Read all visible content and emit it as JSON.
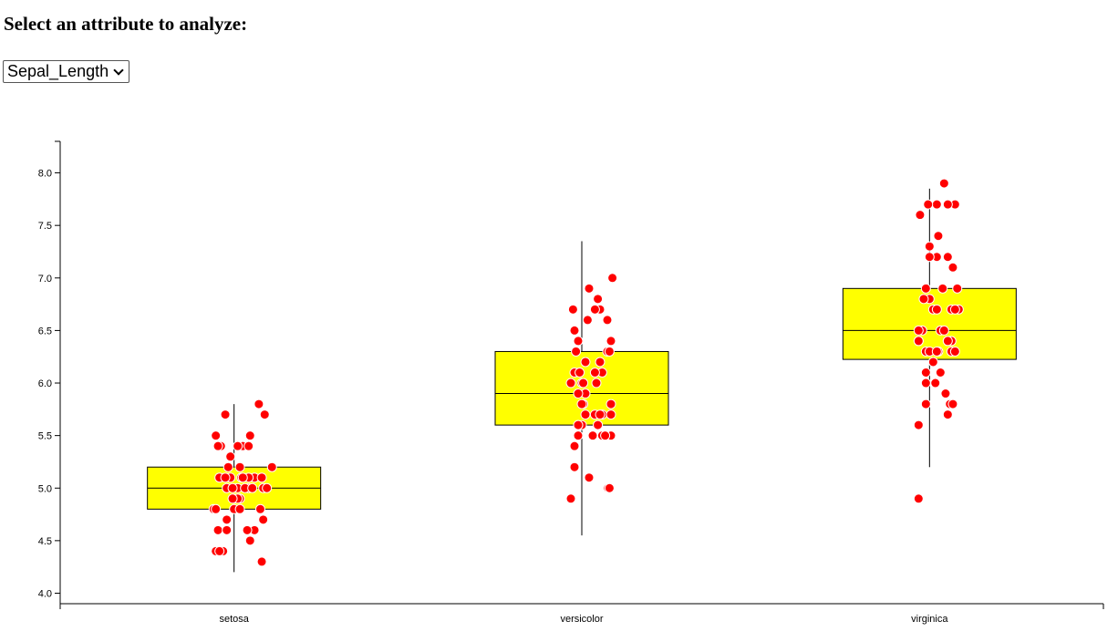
{
  "header": {
    "title": "Select an attribute to analyze:"
  },
  "attribute_select": {
    "selected": "Sepal_Length"
  },
  "colors": {
    "box_fill": "#ffff00",
    "point_fill": "#ff0000",
    "point_stroke": "#ffffff",
    "line": "#000000"
  },
  "chart_data": {
    "type": "box",
    "title": "",
    "xlabel": "",
    "ylabel": "",
    "ylim": [
      3.9,
      8.3
    ],
    "yticks": [
      "4.0",
      "4.5",
      "5.0",
      "5.5",
      "6.0",
      "6.5",
      "7.0",
      "7.5",
      "8.0"
    ],
    "categories": [
      "setosa",
      "versicolor",
      "virginica"
    ],
    "boxes": [
      {
        "category": "setosa",
        "whisker_low": 4.2,
        "q1": 4.8,
        "median": 5.0,
        "q3": 5.2,
        "whisker_high": 5.8
      },
      {
        "category": "versicolor",
        "whisker_low": 4.55,
        "q1": 5.6,
        "median": 5.9,
        "q3": 6.3,
        "whisker_high": 7.35
      },
      {
        "category": "virginica",
        "whisker_low": 5.2,
        "q1": 6.225,
        "median": 6.5,
        "q3": 6.9,
        "whisker_high": 7.85
      }
    ],
    "points": {
      "setosa": [
        [
          5.1,
          0.3
        ],
        [
          4.9,
          0.58
        ],
        [
          4.7,
          0.4
        ],
        [
          4.6,
          0.28
        ],
        [
          5.0,
          0.7
        ],
        [
          5.4,
          0.32
        ],
        [
          4.6,
          0.4
        ],
        [
          5.0,
          0.55
        ],
        [
          4.4,
          0.35
        ],
        [
          4.9,
          0.5
        ],
        [
          5.4,
          0.62
        ],
        [
          4.8,
          0.22
        ],
        [
          4.8,
          0.5
        ],
        [
          4.3,
          0.88
        ],
        [
          5.8,
          0.84
        ],
        [
          5.7,
          0.38
        ],
        [
          5.4,
          0.55
        ],
        [
          5.1,
          0.78
        ],
        [
          5.7,
          0.92
        ],
        [
          5.1,
          0.6
        ],
        [
          5.4,
          0.28
        ],
        [
          5.1,
          0.45
        ],
        [
          4.6,
          0.78
        ],
        [
          5.1,
          0.7
        ],
        [
          4.8,
          0.86
        ],
        [
          5.0,
          0.65
        ],
        [
          5.0,
          0.9
        ],
        [
          5.2,
          0.42
        ],
        [
          5.2,
          0.58
        ],
        [
          4.7,
          0.9
        ],
        [
          4.8,
          0.25
        ],
        [
          5.4,
          0.7
        ],
        [
          5.2,
          1.02
        ],
        [
          5.5,
          0.72
        ],
        [
          4.9,
          0.55
        ],
        [
          5.0,
          0.4
        ],
        [
          5.5,
          0.25
        ],
        [
          4.9,
          0.48
        ],
        [
          4.4,
          0.25
        ],
        [
          5.1,
          0.62
        ],
        [
          5.0,
          0.48
        ],
        [
          4.5,
          0.72
        ],
        [
          4.4,
          0.3
        ],
        [
          5.0,
          0.95
        ],
        [
          5.1,
          0.88
        ],
        [
          4.8,
          0.58
        ],
        [
          5.1,
          0.38
        ],
        [
          4.6,
          0.68
        ],
        [
          5.3,
          0.45
        ],
        [
          5.0,
          0.75
        ]
      ],
      "versicolor": [
        [
          7.0,
          0.92
        ],
        [
          6.4,
          0.9
        ],
        [
          6.9,
          0.6
        ],
        [
          5.5,
          0.9
        ],
        [
          6.5,
          0.4
        ],
        [
          5.7,
          0.55
        ],
        [
          6.3,
          0.85
        ],
        [
          4.9,
          0.35
        ],
        [
          6.6,
          0.58
        ],
        [
          5.2,
          0.4
        ],
        [
          5.0,
          0.86
        ],
        [
          5.9,
          0.55
        ],
        [
          6.0,
          0.5
        ],
        [
          6.1,
          0.78
        ],
        [
          5.6,
          0.5
        ],
        [
          6.7,
          0.75
        ],
        [
          5.6,
          0.45
        ],
        [
          5.8,
          0.52
        ],
        [
          6.2,
          0.75
        ],
        [
          5.6,
          0.72
        ],
        [
          5.9,
          0.45
        ],
        [
          6.1,
          0.4
        ],
        [
          6.3,
          0.42
        ],
        [
          6.1,
          0.47
        ],
        [
          6.4,
          0.45
        ],
        [
          6.6,
          0.85
        ],
        [
          6.8,
          0.72
        ],
        [
          6.7,
          0.68
        ],
        [
          6.0,
          0.7
        ],
        [
          5.7,
          0.68
        ],
        [
          5.5,
          0.78
        ],
        [
          5.5,
          0.45
        ],
        [
          5.8,
          0.9
        ],
        [
          6.0,
          0.35
        ],
        [
          5.4,
          0.4
        ],
        [
          6.0,
          0.52
        ],
        [
          6.7,
          0.38
        ],
        [
          6.3,
          0.88
        ],
        [
          5.6,
          0.72
        ],
        [
          5.5,
          0.65
        ],
        [
          5.5,
          0.82
        ],
        [
          6.1,
          0.68
        ],
        [
          5.8,
          0.5
        ],
        [
          5.0,
          0.88
        ],
        [
          5.6,
          0.45
        ],
        [
          5.7,
          0.78
        ],
        [
          5.7,
          0.9
        ],
        [
          6.2,
          0.55
        ],
        [
          5.1,
          0.6
        ],
        [
          5.7,
          0.75
        ]
      ],
      "virginica": [
        [
          6.3,
          0.45
        ],
        [
          5.8,
          0.78
        ],
        [
          7.1,
          0.82
        ],
        [
          6.3,
          0.62
        ],
        [
          6.5,
          0.4
        ],
        [
          7.6,
          0.37
        ],
        [
          4.9,
          0.35
        ],
        [
          7.3,
          0.5
        ],
        [
          6.7,
          0.9
        ],
        [
          7.2,
          0.6
        ],
        [
          6.5,
          0.65
        ],
        [
          6.4,
          0.35
        ],
        [
          6.8,
          0.5
        ],
        [
          5.7,
          0.75
        ],
        [
          5.8,
          0.45
        ],
        [
          6.4,
          0.75
        ],
        [
          6.5,
          0.7
        ],
        [
          7.7,
          0.6
        ],
        [
          7.7,
          0.85
        ],
        [
          6.0,
          0.58
        ],
        [
          6.9,
          0.68
        ],
        [
          5.6,
          0.35
        ],
        [
          7.7,
          0.75
        ],
        [
          6.3,
          0.8
        ],
        [
          6.7,
          0.55
        ],
        [
          7.2,
          0.75
        ],
        [
          6.2,
          0.55
        ],
        [
          6.1,
          0.65
        ],
        [
          6.4,
          0.8
        ],
        [
          7.2,
          0.5
        ],
        [
          7.4,
          0.62
        ],
        [
          7.9,
          0.7
        ],
        [
          6.4,
          0.35
        ],
        [
          6.3,
          0.5
        ],
        [
          6.1,
          0.45
        ],
        [
          7.7,
          0.48
        ],
        [
          6.3,
          0.85
        ],
        [
          6.4,
          0.75
        ],
        [
          6.0,
          0.45
        ],
        [
          6.9,
          0.88
        ],
        [
          6.7,
          0.8
        ],
        [
          6.9,
          0.45
        ],
        [
          5.8,
          0.82
        ],
        [
          6.8,
          0.42
        ],
        [
          6.7,
          0.85
        ],
        [
          6.7,
          0.6
        ],
        [
          6.3,
          0.6
        ],
        [
          6.5,
          0.35
        ],
        [
          6.2,
          0.55
        ],
        [
          5.9,
          0.72
        ]
      ]
    }
  }
}
